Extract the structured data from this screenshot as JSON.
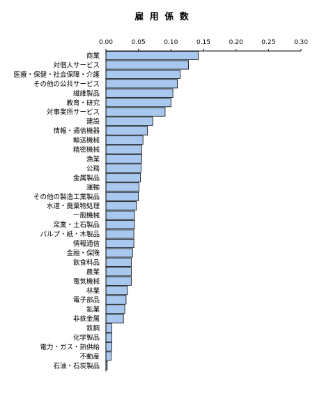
{
  "chart_data": {
    "type": "bar",
    "orientation": "horizontal",
    "title": "雇 用 係 数",
    "xlim": [
      0,
      0.3
    ],
    "xticks": [
      "0.00",
      "0.05",
      "0.10",
      "0.15",
      "0.20",
      "0.25",
      "0.30"
    ],
    "xtick_values": [
      0,
      0.05,
      0.1,
      0.15,
      0.2,
      0.25,
      0.3
    ],
    "tick_position": "top",
    "grid": false,
    "bar_color": "#a8c8f0",
    "categories": [
      "商業",
      "対個人サービス",
      "医療・保健・社会保障・介護",
      "その他の公共サービス",
      "繊維製品",
      "教育・研究",
      "対事業所サービス",
      "建設",
      "情報・通信機器",
      "輸送機械",
      "精密機械",
      "漁業",
      "公務",
      "金属製品",
      "運輸",
      "その他の製造工業製品",
      "水道・廃棄物処理",
      "一般機械",
      "窯業・土石製品",
      "パルプ・紙・木製品",
      "情報通信",
      "金融・保険",
      "飲食料品",
      "農業",
      "電気機械",
      "林業",
      "電子部品",
      "鉱業",
      "非鉄金属",
      "鉄鋼",
      "化学製品",
      "電力・ガス・熱供給",
      "不動産",
      "石油・石炭製品"
    ],
    "values": [
      0.142,
      0.127,
      0.114,
      0.11,
      0.103,
      0.1,
      0.091,
      0.072,
      0.064,
      0.057,
      0.055,
      0.055,
      0.054,
      0.053,
      0.051,
      0.05,
      0.047,
      0.044,
      0.044,
      0.043,
      0.043,
      0.041,
      0.039,
      0.039,
      0.039,
      0.033,
      0.031,
      0.029,
      0.027,
      0.009,
      0.009,
      0.009,
      0.008,
      0.002
    ]
  }
}
